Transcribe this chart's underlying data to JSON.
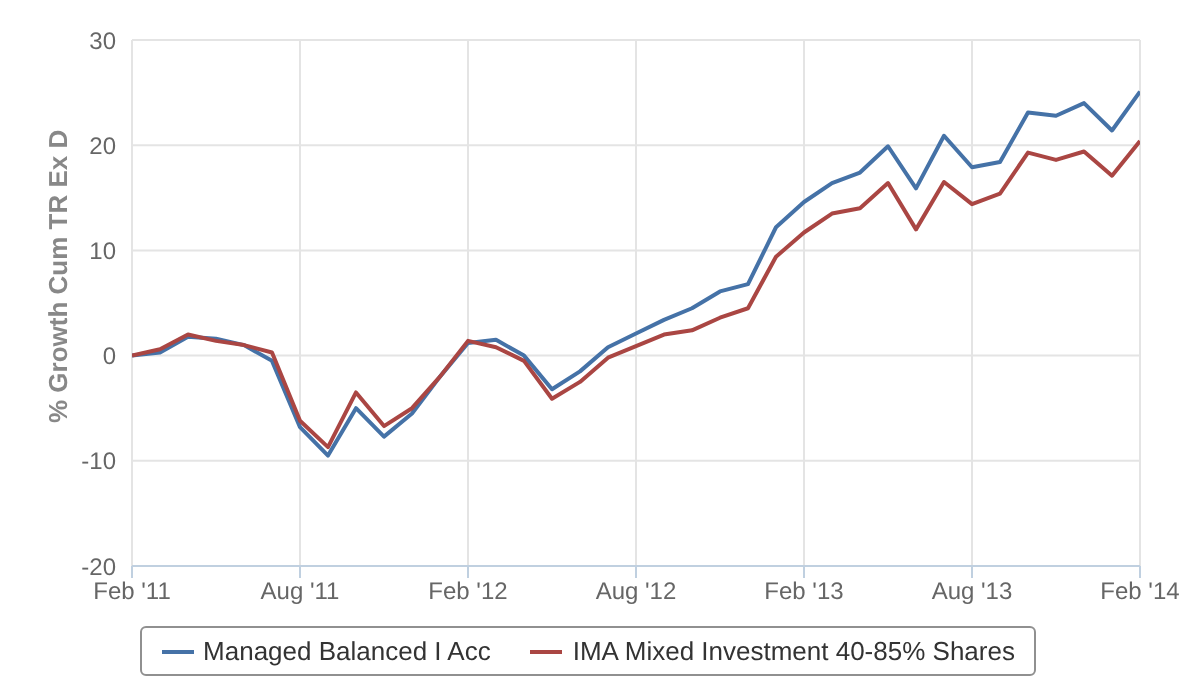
{
  "chart_data": {
    "type": "line",
    "ylabel": "% Growth Cum TR Ex D",
    "x": [
      "2011-02",
      "2011-03",
      "2011-04",
      "2011-05",
      "2011-06",
      "2011-07",
      "2011-08",
      "2011-09",
      "2011-10",
      "2011-11",
      "2011-12",
      "2012-01",
      "2012-02",
      "2012-03",
      "2012-04",
      "2012-05",
      "2012-06",
      "2012-07",
      "2012-08",
      "2012-09",
      "2012-10",
      "2012-11",
      "2012-12",
      "2013-01",
      "2013-02",
      "2013-03",
      "2013-04",
      "2013-05",
      "2013-06",
      "2013-07",
      "2013-08",
      "2013-09",
      "2013-10",
      "2013-11",
      "2013-12",
      "2014-01",
      "2014-02"
    ],
    "series": [
      {
        "name": "Managed Balanced I Acc",
        "color": "#4572a7",
        "values": [
          0,
          0.3,
          1.8,
          1.6,
          1.0,
          -0.5,
          -6.8,
          -9.5,
          -5.0,
          -7.7,
          -5.5,
          -2.0,
          1.2,
          1.5,
          0,
          -3.2,
          -1.5,
          0.8,
          2.1,
          3.4,
          4.5,
          6.1,
          6.8,
          12.2,
          14.6,
          16.4,
          17.4,
          19.9,
          15.9,
          20.9,
          17.9,
          18.4,
          23.1,
          22.8,
          24.0,
          21.4,
          25.1
        ]
      },
      {
        "name": "IMA Mixed Investment 40-85% Shares",
        "color": "#aa4643",
        "values": [
          0,
          0.6,
          2.0,
          1.4,
          1.0,
          0.3,
          -6.2,
          -8.7,
          -3.5,
          -6.7,
          -5.0,
          -2.0,
          1.4,
          0.8,
          -0.5,
          -4.1,
          -2.5,
          -0.2,
          0.9,
          2.0,
          2.4,
          3.6,
          4.5,
          9.4,
          11.7,
          13.5,
          14.0,
          16.4,
          12.0,
          16.5,
          14.4,
          15.4,
          19.3,
          18.6,
          19.4,
          17.1,
          20.4
        ]
      }
    ],
    "xlim": [
      "2011-02",
      "2014-02"
    ],
    "xticks": [
      {
        "value": "2011-02",
        "label": "Feb '11"
      },
      {
        "value": "2011-08",
        "label": "Aug '11"
      },
      {
        "value": "2012-02",
        "label": "Feb '12"
      },
      {
        "value": "2012-08",
        "label": "Aug '12"
      },
      {
        "value": "2013-02",
        "label": "Feb '13"
      },
      {
        "value": "2013-08",
        "label": "Aug '13"
      },
      {
        "value": "2014-02",
        "label": "Feb '14"
      }
    ],
    "ylim": [
      -20,
      30
    ],
    "yticks": [
      -20,
      -10,
      0,
      10,
      20,
      30
    ],
    "grid": true,
    "legend": "bottom",
    "marker": "none",
    "line_style": "solid"
  }
}
